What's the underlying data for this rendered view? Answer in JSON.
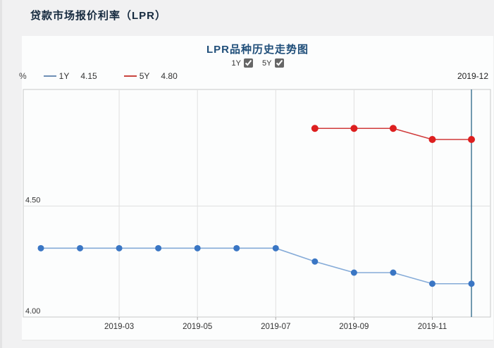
{
  "header": {
    "title": "贷款市场报价利率（LPR）"
  },
  "chart": {
    "title": "LPR品种历史走势图",
    "controls": [
      {
        "label": "1Y",
        "checked": true
      },
      {
        "label": "5Y",
        "checked": true
      }
    ],
    "unit": "%",
    "legend": [
      {
        "name": "1Y",
        "value": "4.15",
        "color": "#6e8fb5"
      },
      {
        "name": "5Y",
        "value": "4.80",
        "color": "#c9453f"
      }
    ],
    "current_period": "2019-12"
  },
  "chart_data": {
    "type": "line",
    "title": "LPR品种历史走势图",
    "x": [
      "2019-01",
      "2019-02",
      "2019-03",
      "2019-04",
      "2019-05",
      "2019-06",
      "2019-07",
      "2019-08",
      "2019-09",
      "2019-10",
      "2019-11",
      "2019-12"
    ],
    "x_tick_labels": [
      "2019-03",
      "2019-05",
      "2019-07",
      "2019-09",
      "2019-11"
    ],
    "series": [
      {
        "name": "1Y",
        "values": [
          4.31,
          4.31,
          4.31,
          4.31,
          4.31,
          4.31,
          4.31,
          4.25,
          4.2,
          4.2,
          4.15,
          4.15
        ],
        "line_color": "#85abd8",
        "point_color": "#3a76c4",
        "point_radius": 4.5
      },
      {
        "name": "5Y",
        "values": [
          null,
          null,
          null,
          null,
          null,
          null,
          null,
          4.85,
          4.85,
          4.85,
          4.8,
          4.8
        ],
        "line_color": "#d03a3a",
        "point_color": "#dd1f1f",
        "point_radius": 5
      }
    ],
    "ylabel": "%",
    "ylim": [
      4.0,
      5.03
    ],
    "y_ticks": [
      4.0,
      4.5
    ],
    "grid": true,
    "legend_position": "top-left",
    "current_marker": {
      "x": "2019-12",
      "label": "2019-12",
      "color": "#38708f"
    },
    "grid_color": "#e0e0e0",
    "border_color": "#c9c9c9",
    "tick_color": "#aaaaaa",
    "axis_label_color": "#333333"
  }
}
